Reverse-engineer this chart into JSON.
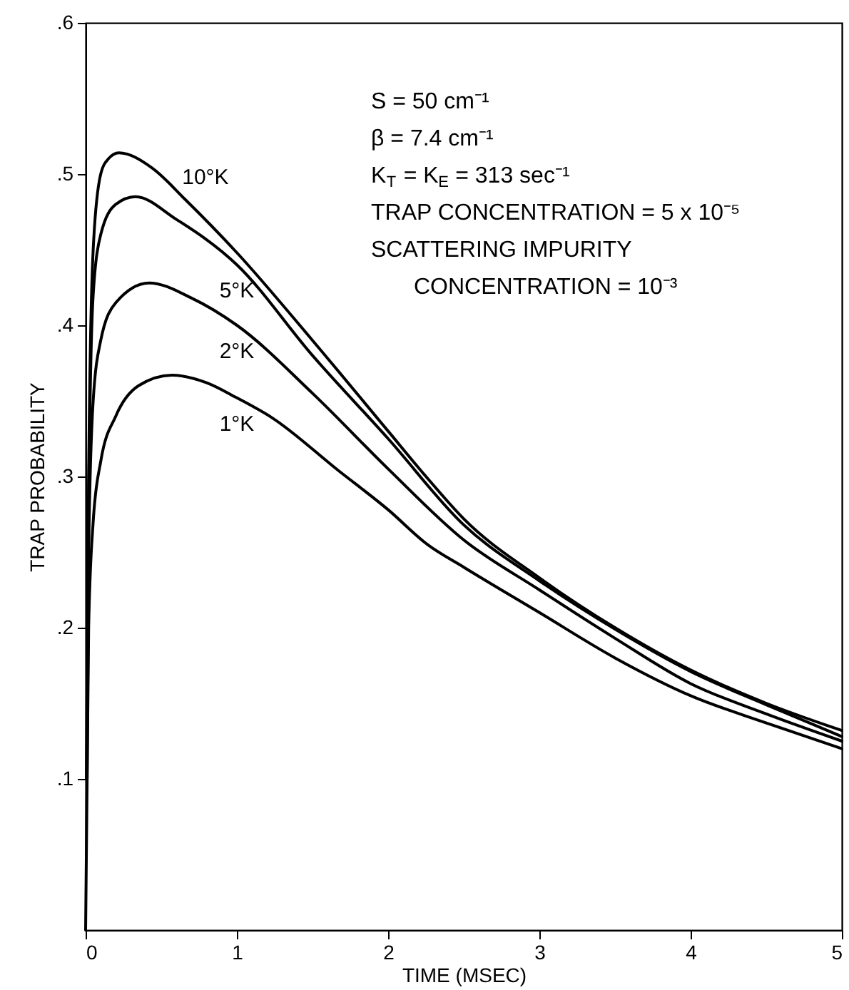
{
  "chart_data": {
    "type": "line",
    "xlabel": "TIME  (MSEC)",
    "ylabel": "TRAP PROBABILITY",
    "xlim": [
      0,
      5
    ],
    "ylim": [
      0,
      0.6
    ],
    "xticks": [
      0,
      1,
      2,
      3,
      4,
      5
    ],
    "yticks": [
      {
        "value": 0.1,
        "label": ".1"
      },
      {
        "value": 0.2,
        "label": ".2"
      },
      {
        "value": 0.3,
        "label": ".3"
      },
      {
        "value": 0.4,
        "label": ".4"
      },
      {
        "value": 0.5,
        "label": ".5"
      },
      {
        "value": 0.6,
        "label": ".6"
      }
    ],
    "grid": false,
    "legend": false,
    "marker": "none",
    "line_style": "solid",
    "series": [
      {
        "name": "10°K",
        "color": "#000000",
        "x": [
          0.005,
          0.02,
          0.05,
          0.1,
          0.15,
          0.22,
          0.44,
          0.66,
          1.0,
          1.5,
          2.0,
          2.25,
          2.5,
          3.0,
          3.5,
          4.0,
          4.5,
          5.0
        ],
        "values": [
          0.1,
          0.3,
          0.45,
          0.5,
          0.51,
          0.514,
          0.504,
          0.483,
          0.448,
          0.39,
          0.33,
          0.3,
          0.272,
          0.233,
          0.2,
          0.172,
          0.15,
          0.132
        ]
      },
      {
        "name": "5°K",
        "color": "#000000",
        "x": [
          0.008,
          0.02,
          0.05,
          0.1,
          0.2,
          0.33,
          0.6,
          1.0,
          1.5,
          2.0,
          2.5,
          3.0,
          3.5,
          4.0,
          4.5,
          5.0
        ],
        "values": [
          0.1,
          0.28,
          0.42,
          0.46,
          0.48,
          0.485,
          0.47,
          0.44,
          0.38,
          0.325,
          0.268,
          0.231,
          0.199,
          0.171,
          0.149,
          0.128
        ]
      },
      {
        "name": "2°K",
        "color": "#000000",
        "x": [
          0.01,
          0.02,
          0.05,
          0.1,
          0.2,
          0.42,
          0.7,
          1.0,
          1.5,
          2.0,
          2.5,
          3.0,
          3.5,
          4.0,
          4.5,
          5.0
        ],
        "values": [
          0.1,
          0.25,
          0.35,
          0.39,
          0.415,
          0.428,
          0.418,
          0.4,
          0.355,
          0.305,
          0.258,
          0.225,
          0.193,
          0.163,
          0.143,
          0.125
        ]
      },
      {
        "name": "1°K",
        "color": "#000000",
        "x": [
          0,
          0.02,
          0.05,
          0.1,
          0.2,
          0.35,
          0.57,
          0.8,
          1.0,
          1.23,
          1.67,
          2.0,
          2.26,
          2.5,
          3.0,
          3.5,
          4.0,
          4.5,
          5.0
        ],
        "values": [
          0,
          0.2,
          0.27,
          0.31,
          0.34,
          0.36,
          0.367,
          0.362,
          0.352,
          0.339,
          0.304,
          0.278,
          0.255,
          0.24,
          0.21,
          0.18,
          0.155,
          0.137,
          0.12
        ]
      }
    ],
    "annotations": [
      "S = 50 cm⁻¹",
      "β = 7.4 cm⁻¹",
      "K$_{T}$ = K$_{E}$ = 313 sec⁻¹",
      "TRAP CONCENTRATION = 5 x 10⁻⁵",
      "SCATTERING IMPURITY",
      "CONCENTRATION = 10⁻³"
    ]
  }
}
